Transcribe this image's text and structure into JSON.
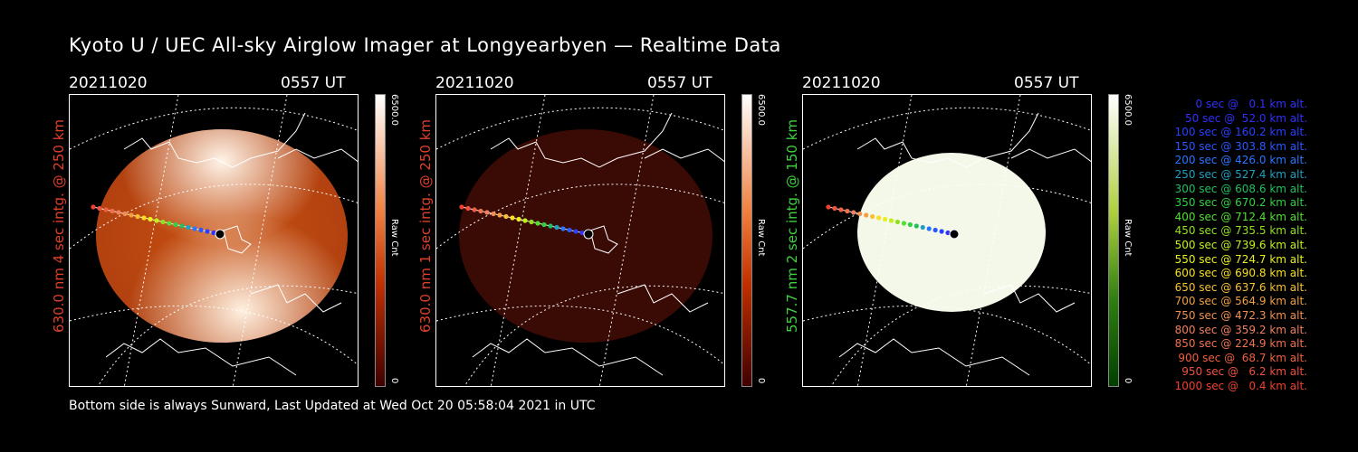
{
  "title": "Kyoto U / UEC All-sky Airglow Imager at Longyearbyen — Realtime Data",
  "footer": "Bottom side is always Sunward, Last Updated at Wed Oct 20 05:58:04 2021 in UTC",
  "panels": [
    {
      "date": "20211020",
      "time": "0557 UT",
      "ylabel": "630.0 nm 4 sec intg. @ 250 km",
      "label_color": "#e0402a",
      "cb_top": "6500.0",
      "cb_mid": "Raw Cnt",
      "cb_bottom": "0",
      "cb_top_color": "#ffffff",
      "cb_bottom_color": "#3a0000"
    },
    {
      "date": "20211020",
      "time": "0557 UT",
      "ylabel": "630.0 nm 1 sec intg. @ 250 km",
      "label_color": "#e0402a",
      "cb_top": "6500.0",
      "cb_mid": "Raw Cnt",
      "cb_bottom": "0",
      "cb_top_color": "#ffffff",
      "cb_bottom_color": "#3a0000"
    },
    {
      "date": "20211020",
      "time": "0557 UT",
      "ylabel": "557.7 nm 2 sec intg. @ 150 km",
      "label_color": "#40d040",
      "cb_top": "6500.0",
      "cb_mid": "Raw Cnt",
      "cb_bottom": "0",
      "cb_top_color": "#ffffff",
      "cb_bottom_color": "#004000"
    }
  ],
  "legend": [
    {
      "text": "0 sec @   0.1 km alt.",
      "color": "#3030ff"
    },
    {
      "text": "50 sec @  52.0 km alt.",
      "color": "#3030ff"
    },
    {
      "text": "100 sec @ 160.2 km alt.",
      "color": "#2840ff"
    },
    {
      "text": "150 sec @ 303.8 km alt.",
      "color": "#2858ff"
    },
    {
      "text": "200 sec @ 426.0 km alt.",
      "color": "#2878ff"
    },
    {
      "text": "250 sec @ 527.4 km alt.",
      "color": "#20a0c0"
    },
    {
      "text": "300 sec @ 608.6 km alt.",
      "color": "#20c060"
    },
    {
      "text": "350 sec @ 670.2 km alt.",
      "color": "#30d040"
    },
    {
      "text": "400 sec @ 712.4 km alt.",
      "color": "#50e030"
    },
    {
      "text": "450 sec @ 735.5 km alt.",
      "color": "#90e020"
    },
    {
      "text": "500 sec @ 739.6 km alt.",
      "color": "#c0f020"
    },
    {
      "text": "550 sec @ 724.7 km alt.",
      "color": "#e8f020"
    },
    {
      "text": "600 sec @ 690.8 km alt.",
      "color": "#f8e020"
    },
    {
      "text": "650 sec @ 637.6 km alt.",
      "color": "#f8c030"
    },
    {
      "text": "700 sec @ 564.9 km alt.",
      "color": "#f0a040"
    },
    {
      "text": "750 sec @ 472.3 km alt.",
      "color": "#f09050"
    },
    {
      "text": "800 sec @ 359.2 km alt.",
      "color": "#f08060"
    },
    {
      "text": "850 sec @ 224.9 km alt.",
      "color": "#f07050"
    },
    {
      "text": "900 sec @  68.7 km alt.",
      "color": "#f06040"
    },
    {
      "text": "950 sec @   6.2 km alt.",
      "color": "#f05040"
    },
    {
      "text": "1000 sec @   0.4 km alt.",
      "color": "#f04030"
    }
  ]
}
